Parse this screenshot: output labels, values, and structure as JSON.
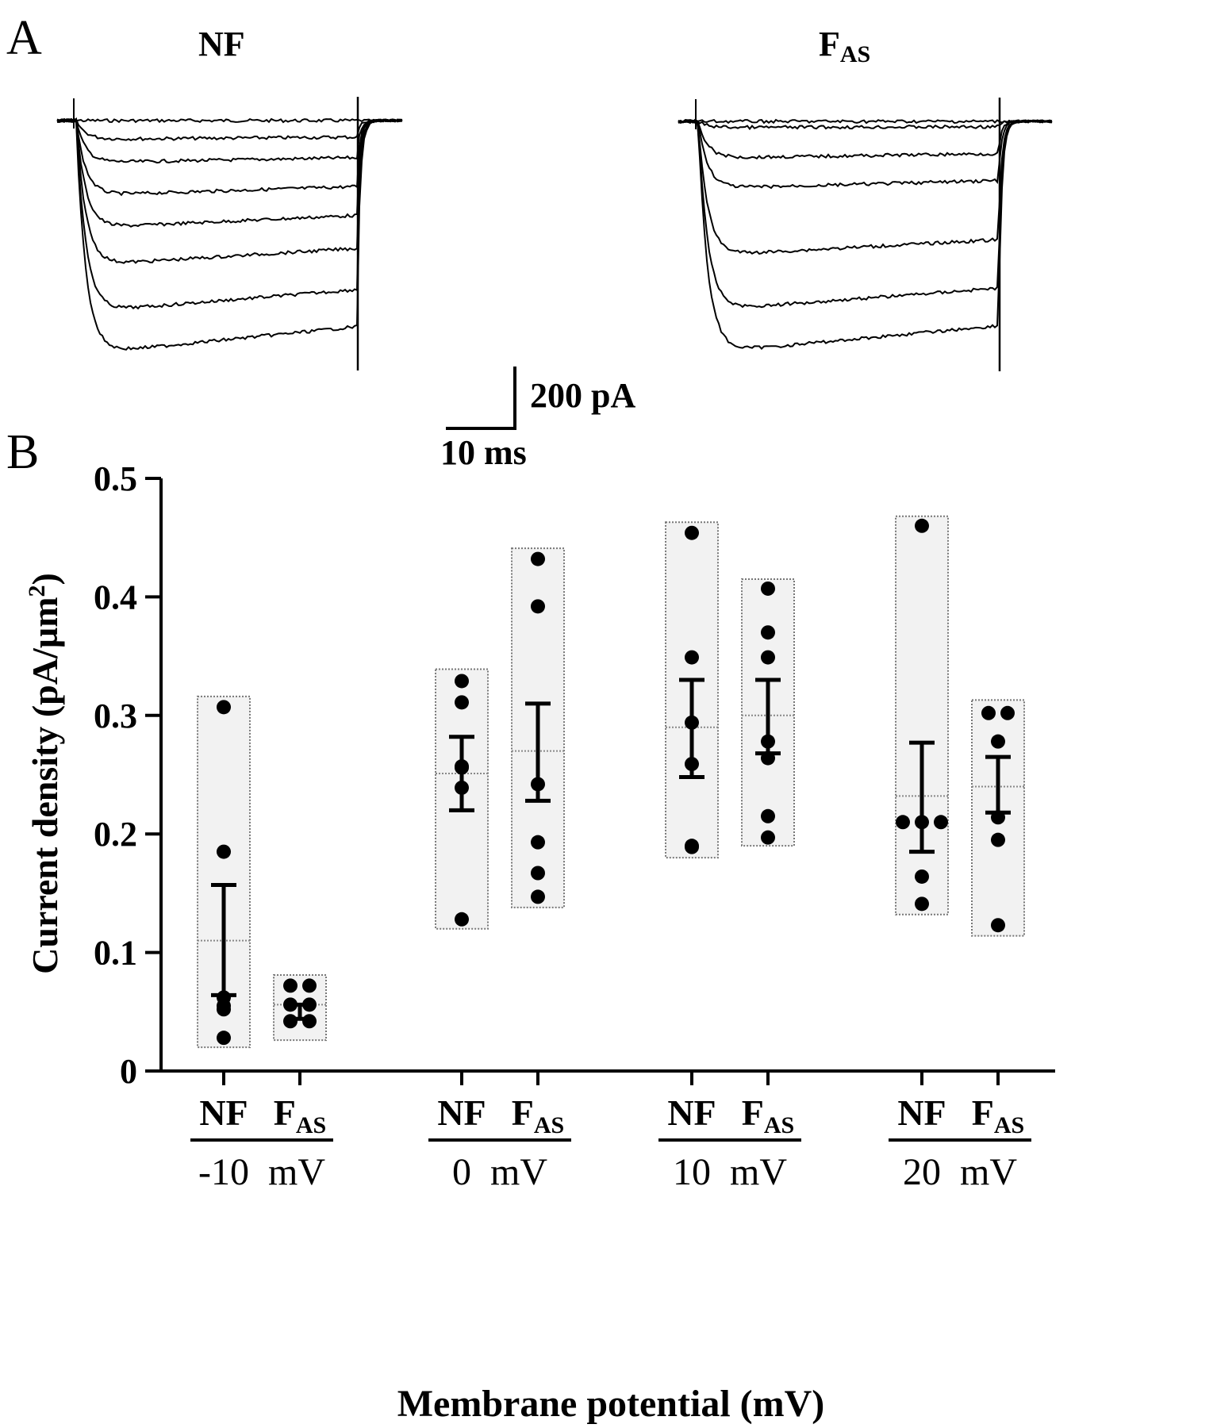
{
  "panel_a": {
    "label": "A",
    "left_title": "NF",
    "right_title_main": "F",
    "right_title_sub": "AS",
    "scalebar_current": "200 pA",
    "scalebar_time": "10 ms",
    "traces_left_levels": [
      0,
      0.04,
      0.09,
      0.16,
      0.23,
      0.31,
      0.41,
      0.5
    ],
    "traces_right_levels": [
      0,
      0.01,
      0.06,
      0.11,
      0.22,
      0.31,
      0.38
    ]
  },
  "chart_data": {
    "type": "scatter",
    "panel_label": "B",
    "ylabel": "Current density (pA/µm²)",
    "ylabel_main": "Current density (pA/µm",
    "ylabel_sup": "2",
    "ylabel_end": ")",
    "xlabel": "Membrane potential (mV)",
    "ylim": [
      0,
      0.5
    ],
    "yticks": [
      0,
      0.1,
      0.2,
      0.3,
      0.4,
      0.5
    ],
    "ytick_labels": [
      "0",
      "0.1",
      "0.2",
      "0.3",
      "0.4",
      "0.5"
    ],
    "group_labels": [
      "-10  mV",
      "0  mV",
      "10  mV",
      "20  mV"
    ],
    "condition_main": {
      "NF": "NF",
      "FAS": "F"
    },
    "condition_sub": {
      "NF": "",
      "FAS": "AS"
    },
    "box_colors": {
      "fill": "#f2f2f2",
      "stroke": "#777777"
    },
    "groups": [
      {
        "potential": "-10 mV",
        "conditions": [
          {
            "name": "NF",
            "points": [
              0.307,
              0.185,
              0.062,
              0.055,
              0.052,
              0.028
            ],
            "mean": 0.11,
            "sem_low": 0.064,
            "sem_high": 0.157,
            "box": [
              0.02,
              0.316
            ]
          },
          {
            "name": "FAS",
            "points": [
              0.072,
              0.072,
              0.056,
              0.056,
              0.042,
              0.042
            ],
            "mean": 0.056,
            "sem_low": 0.044,
            "sem_high": 0.056,
            "box": [
              0.026,
              0.081
            ]
          }
        ]
      },
      {
        "potential": "0 mV",
        "conditions": [
          {
            "name": "NF",
            "points": [
              0.329,
              0.311,
              0.257,
              0.256,
              0.239,
              0.128
            ],
            "mean": 0.251,
            "sem_low": 0.22,
            "sem_high": 0.282,
            "box": [
              0.12,
              0.339
            ]
          },
          {
            "name": "FAS",
            "points": [
              0.432,
              0.392,
              0.242,
              0.193,
              0.167,
              0.147
            ],
            "mean": 0.27,
            "sem_low": 0.228,
            "sem_high": 0.31,
            "box": [
              0.138,
              0.441
            ]
          },
          {
            "name": "_",
            "points": []
          }
        ]
      },
      {
        "potential": "10 mV",
        "conditions": [
          {
            "name": "NF",
            "points": [
              0.454,
              0.349,
              0.294,
              0.259,
              0.19,
              0.189
            ],
            "mean": 0.29,
            "sem_low": 0.248,
            "sem_high": 0.33,
            "box": [
              0.18,
              0.463
            ]
          },
          {
            "name": "FAS",
            "points": [
              0.407,
              0.37,
              0.349,
              0.278,
              0.264,
              0.215,
              0.197
            ],
            "mean": 0.3,
            "sem_low": 0.268,
            "sem_high": 0.33,
            "box": [
              0.19,
              0.415
            ]
          }
        ]
      },
      {
        "potential": "20 mV",
        "conditions": [
          {
            "name": "NF",
            "points": [
              0.46,
              0.21,
              0.21,
              0.21,
              0.164,
              0.141
            ],
            "mean": 0.232,
            "sem_low": 0.185,
            "sem_high": 0.277,
            "box": [
              0.132,
              0.468
            ]
          },
          {
            "name": "FAS",
            "points": [
              0.302,
              0.302,
              0.278,
              0.214,
              0.195,
              0.123
            ],
            "mean": 0.24,
            "sem_low": 0.218,
            "sem_high": 0.265,
            "box": [
              0.114,
              0.313
            ]
          }
        ]
      }
    ]
  }
}
